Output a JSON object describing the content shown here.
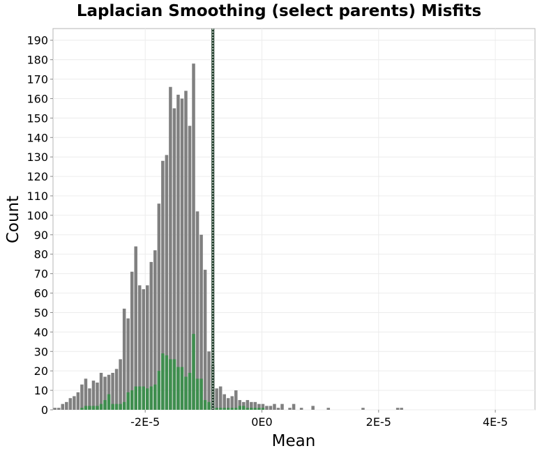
{
  "chart_data": {
    "type": "bar",
    "title": "Laplacian Smoothing (select parents) Misfits",
    "xlabel": "Mean",
    "ylabel": "Count",
    "xlim": [
      -3.58e-05,
      4.68e-05
    ],
    "ylim": [
      0,
      196
    ],
    "grid": true,
    "bin_start": -3.58e-05,
    "bin_width": 6.6e-07,
    "x_ticks": [
      {
        "value": -2e-05,
        "label": "-2E-5"
      },
      {
        "value": 0,
        "label": "0E0"
      },
      {
        "value": 2e-05,
        "label": "2E-5"
      },
      {
        "value": 4e-05,
        "label": "4E-5"
      }
    ],
    "y_ticks": [
      0,
      10,
      20,
      30,
      40,
      50,
      60,
      70,
      80,
      90,
      100,
      110,
      120,
      130,
      140,
      150,
      160,
      170,
      180,
      190
    ],
    "series": [
      {
        "color": "#808080",
        "values": [
          1,
          1,
          3,
          4,
          6,
          7,
          9,
          13,
          16,
          11,
          15,
          14,
          19,
          17,
          18,
          19,
          21,
          26,
          52,
          47,
          71,
          84,
          64,
          62,
          64,
          76,
          82,
          106,
          128,
          131,
          166,
          155,
          162,
          160,
          164,
          146,
          178,
          102,
          90,
          72,
          30,
          23,
          11,
          12,
          8,
          6,
          7,
          10,
          5,
          4,
          5,
          4,
          4,
          3,
          3,
          2,
          2,
          3,
          1,
          3,
          0,
          1,
          3,
          0,
          1,
          0,
          0,
          2,
          0,
          0,
          0,
          1,
          0,
          0,
          0,
          0,
          0,
          0,
          0,
          0,
          1,
          0,
          0,
          0,
          0,
          0,
          0,
          0,
          0,
          1,
          1
        ]
      },
      {
        "color": "#3e8e4e",
        "values": [
          0,
          0,
          0,
          0,
          0,
          0,
          0,
          1,
          2,
          2,
          2,
          2,
          3,
          5,
          8,
          3,
          3,
          3,
          4,
          9,
          10,
          12,
          12,
          12,
          11,
          12,
          13,
          20,
          29,
          28,
          26,
          26,
          22,
          22,
          17,
          19,
          39,
          16,
          16,
          5,
          4,
          2,
          1,
          1,
          1,
          1,
          1,
          1,
          2,
          2,
          1,
          1,
          1,
          1,
          1,
          0,
          0,
          0,
          0,
          0,
          0,
          0,
          0,
          0,
          0,
          0,
          0,
          0,
          0,
          0,
          0,
          0,
          0,
          0,
          0,
          0,
          0,
          0,
          0,
          0,
          0,
          0,
          0,
          0,
          0,
          0,
          0,
          0,
          0,
          0,
          0
        ]
      }
    ],
    "vline": {
      "x": -8.4e-06,
      "color": "#1f3d2a"
    }
  }
}
